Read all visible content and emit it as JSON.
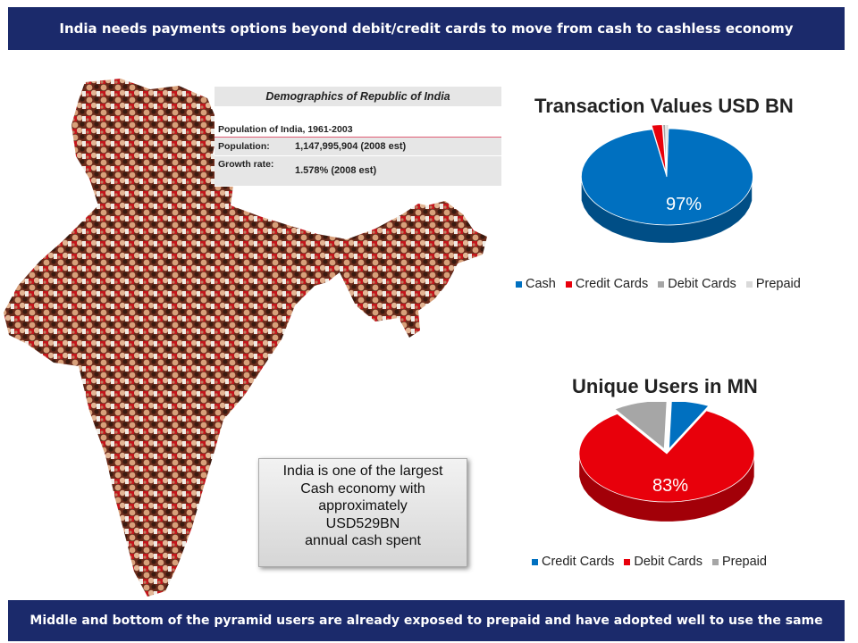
{
  "header": {
    "text": "India needs payments options beyond debit/credit cards to move from cash to cashless economy"
  },
  "footer": {
    "text": "Middle and bottom of the pyramid users are already exposed to prepaid and have adopted well to use the same"
  },
  "demographics": {
    "title": "Demographics of Republic of India",
    "subtitle": "Population of India, 1961-2003",
    "rows": [
      {
        "label": "Population:",
        "value": "1,147,995,904 (2008 est)"
      },
      {
        "label": "Growth rate:",
        "value": "1.578% (2008 est)"
      }
    ]
  },
  "callout": {
    "lines": [
      "India is one of the largest",
      "Cash economy with",
      "approximately",
      "USD529BN",
      "annual cash spent"
    ]
  },
  "colors": {
    "banner": "#1b2a6b",
    "blue": "#0070c0",
    "red": "#e8000b",
    "gray": "#a6a6a6",
    "lightgray": "#d9d9d9",
    "darkgray": "#404040"
  },
  "chart_data": [
    {
      "type": "pie",
      "title": "Transaction Values USD BN",
      "categories": [
        "Cash",
        "Credit Cards",
        "Debit Cards",
        "Prepaid"
      ],
      "values": [
        97,
        2,
        0.5,
        0.5
      ],
      "data_labels": [
        "97%",
        "",
        "",
        ""
      ],
      "colors": [
        "#0070c0",
        "#e8000b",
        "#a6a6a6",
        "#d9d9d9"
      ],
      "legend": "bottom"
    },
    {
      "type": "pie",
      "title": "Unique Users in MN",
      "categories": [
        "Credit Cards",
        "Debit Cards",
        "Prepaid"
      ],
      "values": [
        7,
        83,
        10
      ],
      "data_labels": [
        "",
        "83%",
        ""
      ],
      "colors": [
        "#0070c0",
        "#e8000b",
        "#a6a6a6"
      ],
      "legend": "bottom"
    }
  ]
}
